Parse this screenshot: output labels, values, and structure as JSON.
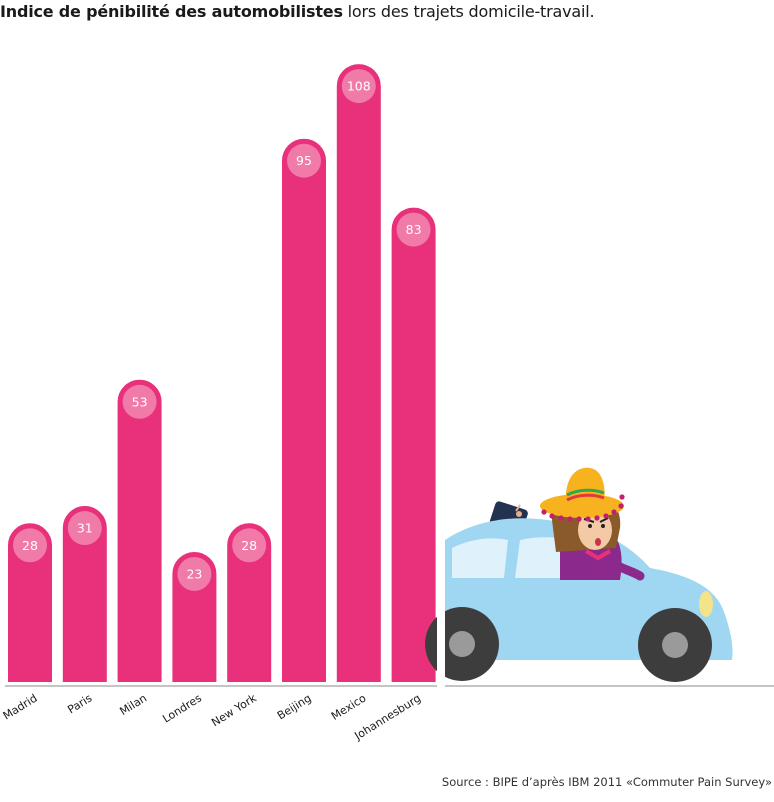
{
  "title": {
    "bold": "Indice de pénibilité des automobilistes",
    "rest": " lors des trajets domicile-travail."
  },
  "source": "Source : BIPE d’après IBM 2011 «Commuter Pain Survey»",
  "colors": {
    "bar": "#e8317a",
    "bar_border": "#ffffff",
    "value_circle": "#f07aa8",
    "car_body": "#9fd6f2",
    "car_window": "#dff1fb",
    "wheel": "#3d3d3d",
    "hub": "#9a9a9a"
  },
  "chart_data": {
    "type": "bar",
    "title": "Indice de pénibilité des automobilistes lors des trajets domicile-travail.",
    "xlabel": "",
    "ylabel": "",
    "ylim": [
      0,
      120
    ],
    "grid": false,
    "categories": [
      "Madrid",
      "Paris",
      "Milan",
      "Londres",
      "New York",
      "Beijing",
      "Mexico",
      "Johannesburg"
    ],
    "values": [
      28,
      31,
      53,
      23,
      28,
      95,
      108,
      83
    ]
  },
  "illustration": {
    "subject": "woman-driver-sombrero-car",
    "icon": "car-icon"
  }
}
